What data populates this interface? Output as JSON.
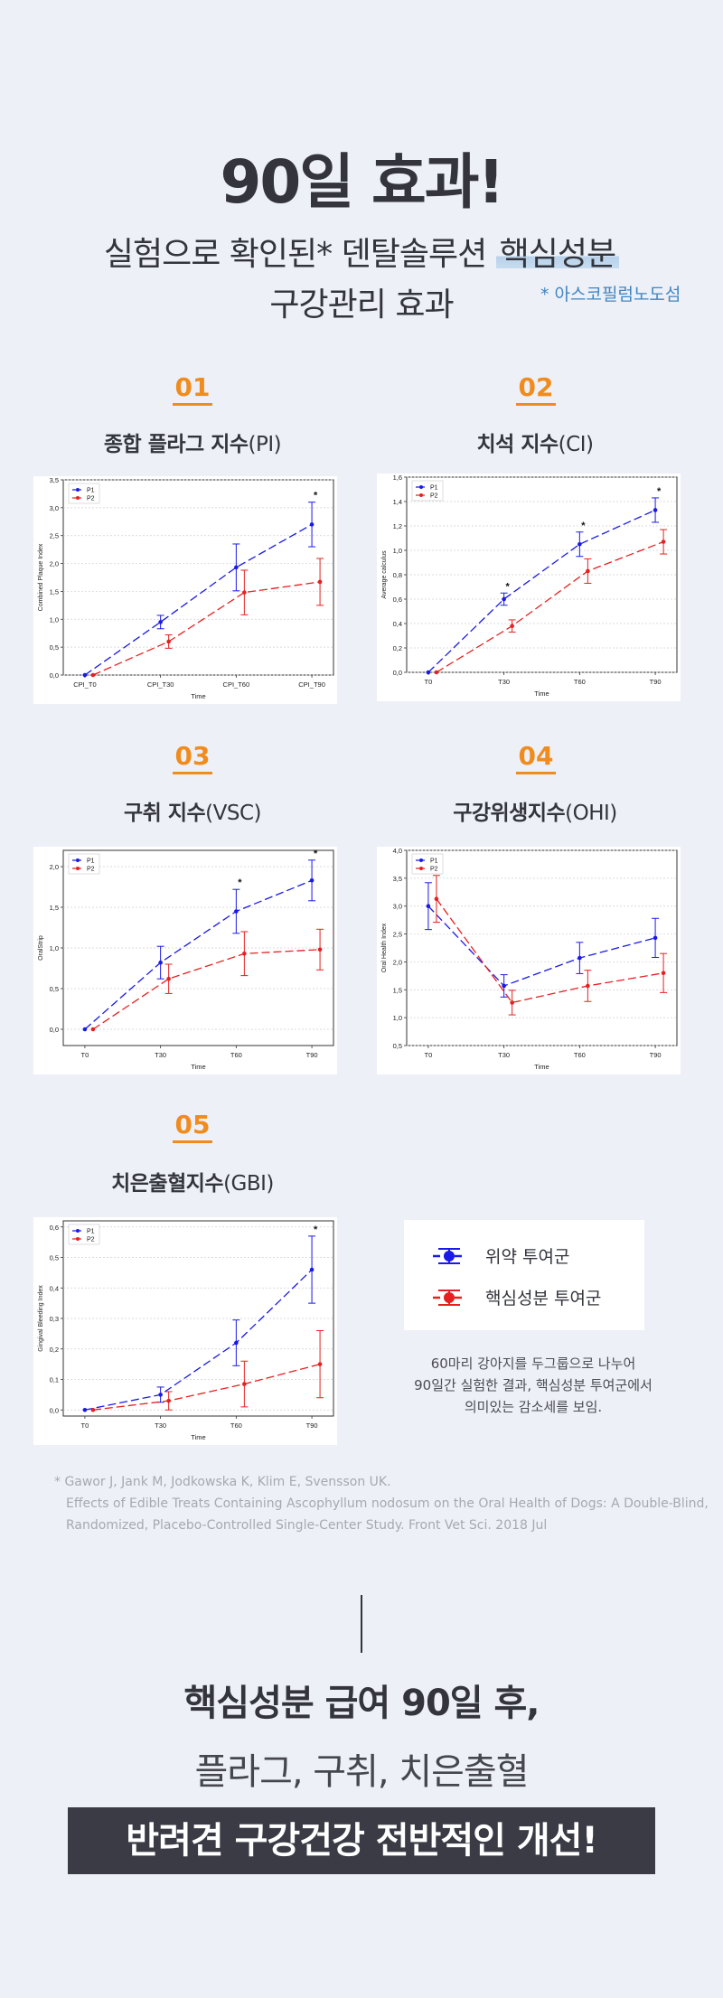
{
  "header": {
    "title": "90일 효과!",
    "subtitle_line1_pre": "실험으로 확인된* 덴탈솔루션 ",
    "subtitle_line1_highlight": "핵심성분",
    "subtitle_line2": "구강관리 효과",
    "footnote": "* 아스코필럼노도섬"
  },
  "colors": {
    "accent": "#f08c1e",
    "p1": "#1a1ae6",
    "p2": "#e62020",
    "dark": "#3a3b45",
    "note_blue": "#3f86c3"
  },
  "sections": [
    {
      "num": "01",
      "title_bold": "종합 플라그 지수",
      "title_light": "(PI)"
    },
    {
      "num": "02",
      "title_bold": "치석 지수",
      "title_light": "(CI)"
    },
    {
      "num": "03",
      "title_bold": "구취 지수",
      "title_light": "(VSC)"
    },
    {
      "num": "04",
      "title_bold": "구강위생지수",
      "title_light": "(OHI)"
    },
    {
      "num": "05",
      "title_bold": "치은출혈지수",
      "title_light": "(GBI)"
    }
  ],
  "chart_data": [
    {
      "type": "line",
      "categories": [
        "CPI_T0",
        "CPI_T30",
        "CPI_T60",
        "CPI_T90"
      ],
      "ylabel": "Combined Plaque Index",
      "xlabel": "Time",
      "ylim": [
        0,
        3.5
      ],
      "yticks": [
        "0,0",
        "0,5",
        "1,0",
        "1,5",
        "2,0",
        "2,5",
        "3,0",
        "3,5"
      ],
      "series": [
        {
          "name": "P1",
          "values": [
            0.0,
            0.95,
            1.93,
            2.7
          ],
          "err": [
            0,
            0.12,
            0.42,
            0.4
          ]
        },
        {
          "name": "P2",
          "values": [
            0.0,
            0.6,
            1.48,
            1.67
          ],
          "err": [
            0,
            0.12,
            0.4,
            0.42
          ]
        }
      ],
      "stars": [
        3
      ]
    },
    {
      "type": "line",
      "categories": [
        "T0",
        "T30",
        "T60",
        "T90"
      ],
      "ylabel": "Average calculus",
      "xlabel": "Time",
      "ylim": [
        0,
        1.6
      ],
      "yticks": [
        "0,0",
        "0,2",
        "0,4",
        "0,6",
        "0,8",
        "1,0",
        "1,2",
        "1,4",
        "1,6"
      ],
      "series": [
        {
          "name": "P1",
          "values": [
            0.0,
            0.6,
            1.05,
            1.33
          ],
          "err": [
            0,
            0.05,
            0.1,
            0.1
          ]
        },
        {
          "name": "P2",
          "values": [
            0.0,
            0.38,
            0.83,
            1.07
          ],
          "err": [
            0,
            0.05,
            0.1,
            0.1
          ]
        }
      ],
      "stars": [
        1,
        2,
        3
      ]
    },
    {
      "type": "line",
      "categories": [
        "T0",
        "T30",
        "T60",
        "T90"
      ],
      "ylabel": "OralStrip",
      "xlabel": "Time",
      "ylim": [
        -0.2,
        2.2
      ],
      "yticks_values": [
        0,
        0.5,
        1.0,
        1.5,
        2.0
      ],
      "yticks": [
        "0,0",
        "0,5",
        "1,0",
        "1,5",
        "2,0"
      ],
      "series": [
        {
          "name": "P1",
          "values": [
            0.0,
            0.82,
            1.45,
            1.83
          ],
          "err": [
            0,
            0.2,
            0.27,
            0.25
          ]
        },
        {
          "name": "P2",
          "values": [
            0.0,
            0.62,
            0.93,
            0.98
          ],
          "err": [
            0,
            0.18,
            0.27,
            0.25
          ]
        }
      ],
      "stars": [
        2,
        3
      ]
    },
    {
      "type": "line",
      "categories": [
        "T0",
        "T30",
        "T60",
        "T90"
      ],
      "ylabel": "Oral Health Index",
      "xlabel": "Time",
      "ylim": [
        0.5,
        4.0
      ],
      "yticks": [
        "0,5",
        "1,0",
        "1,5",
        "2,0",
        "2,5",
        "3,0",
        "3,5",
        "4,0"
      ],
      "series": [
        {
          "name": "P1",
          "values": [
            3.0,
            1.57,
            2.07,
            2.43
          ],
          "err": [
            0,
            0.2,
            0.28,
            0.35
          ]
        },
        {
          "name": "P2",
          "values": [
            3.13,
            1.27,
            1.57,
            1.8
          ],
          "err": [
            0.42,
            0.22,
            0.28,
            0.35
          ]
        }
      ],
      "p1_err_t0": 0.42,
      "stars": []
    },
    {
      "type": "line",
      "categories": [
        "T0",
        "T30",
        "T60",
        "T90"
      ],
      "ylabel": "Gingival Bleeding Index",
      "xlabel": "Time",
      "ylim": [
        -0.02,
        0.62
      ],
      "yticks_values": [
        0,
        0.1,
        0.2,
        0.3,
        0.4,
        0.5,
        0.6
      ],
      "yticks": [
        "0,0",
        "0,1",
        "0,2",
        "0,3",
        "0,4",
        "0,5",
        "0,6"
      ],
      "series": [
        {
          "name": "P1",
          "values": [
            0.0,
            0.05,
            0.22,
            0.46
          ],
          "err": [
            0,
            0.025,
            0.075,
            0.11
          ]
        },
        {
          "name": "P2",
          "values": [
            0.0,
            0.03,
            0.085,
            0.15
          ],
          "err": [
            0,
            0.03,
            0.075,
            0.11
          ]
        }
      ],
      "stars": [
        3
      ]
    }
  ],
  "legend": {
    "p1_label": "위약 투여군",
    "p2_label": "핵심성분 투여군"
  },
  "caption": [
    "60마리 강아지를 두그룹으로 나누어",
    "90일간 실험한 결과, 핵심성분 투여군에서",
    "의미있는 감소세를 보임."
  ],
  "references": [
    "* Gawor J, Jank M, Jodkowska K, Klim E, Svensson UK.",
    "Effects of Edible Treats Containing Ascophyllum nodosum on the Oral Health of Dogs: A Double-Blind,",
    "Randomized, Placebo-Controlled Single-Center Study. Front Vet Sci. 2018 Jul"
  ],
  "bottom": {
    "line1": "핵심성분 급여 90일 후,",
    "line2": "플라그, 구취, 치은출혈",
    "banner": "반려견 구강건강 전반적인 개선!"
  }
}
